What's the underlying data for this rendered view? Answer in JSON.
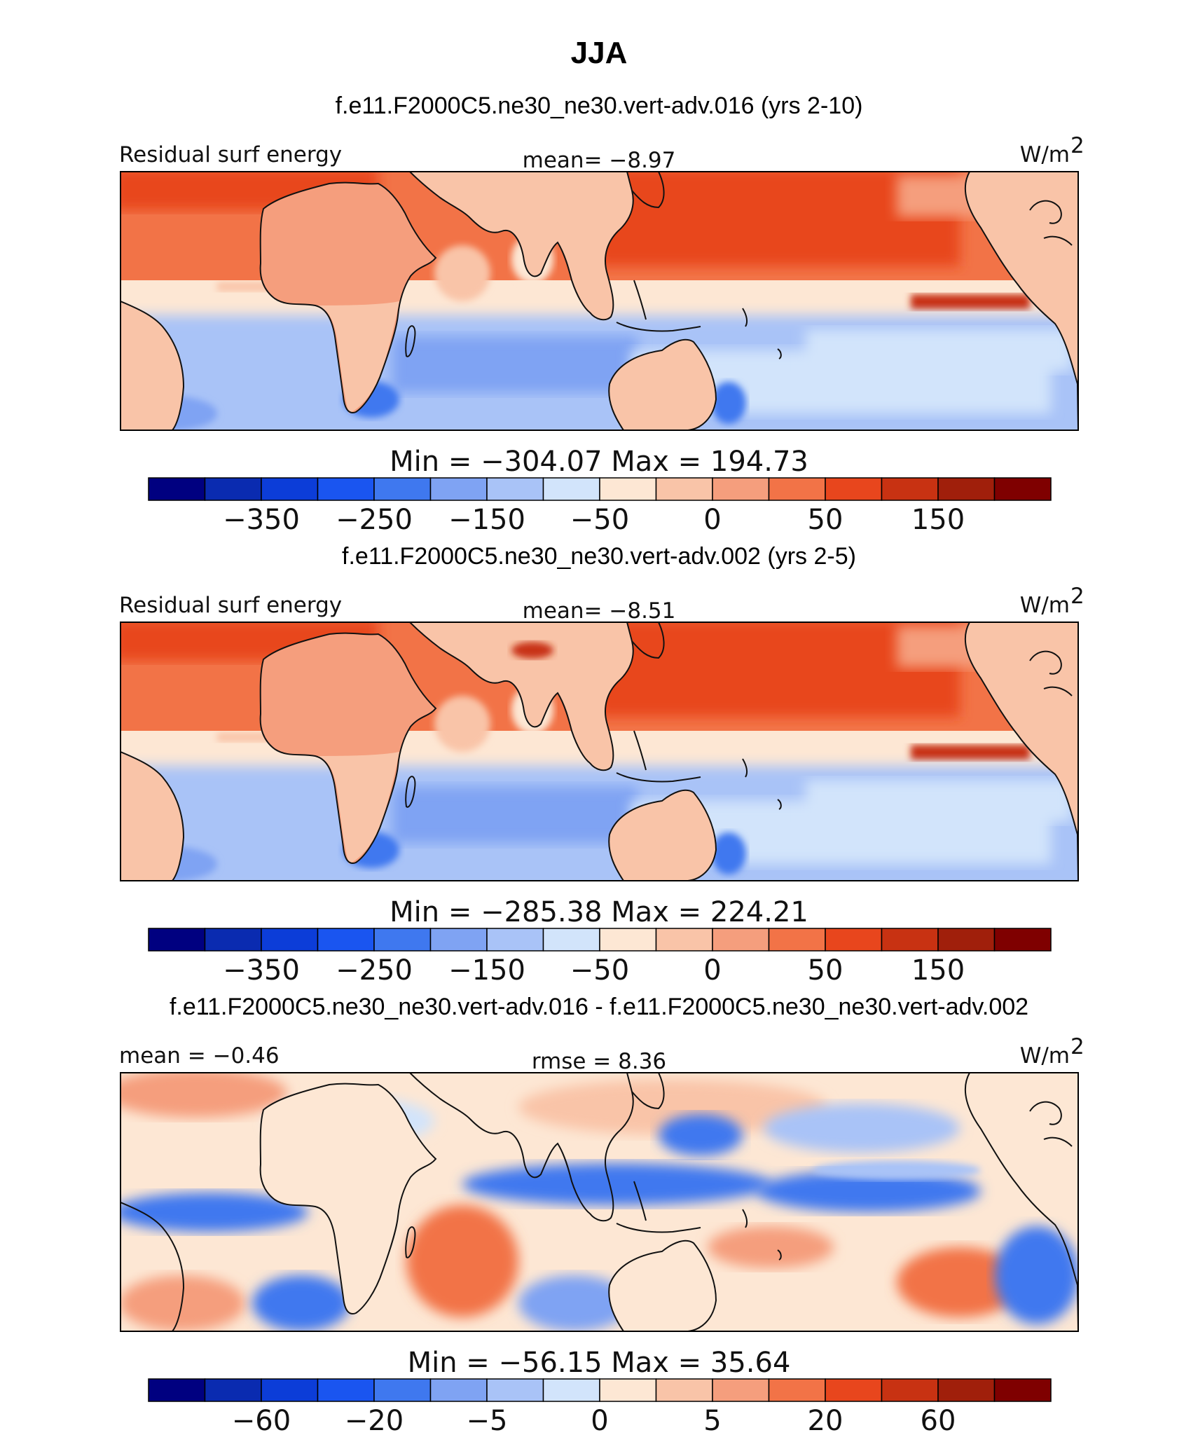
{
  "chart_data": {
    "type": "heatmap",
    "title": "JJA",
    "colors": [
      "#000080",
      "#0a2bb0",
      "#0c3dd8",
      "#1a55f0",
      "#3f78ef",
      "#7fa3f3",
      "#a9c3f7",
      "#d2e4fb",
      "#fde7d4",
      "#f9c4a8",
      "#f59e7d",
      "#f27347",
      "#e8461d",
      "#c83212",
      "#a01f0b",
      "#7f0000"
    ],
    "panels": [
      {
        "id": "top",
        "case_title": "f.e11.F2000C5.ne30_ne30.vert-adv.016 (yrs 2-10)",
        "left_label": "Residual surf energy",
        "center_label": "mean=   −8.97",
        "units_base": "W/m",
        "units_exp": "2",
        "min_label": "Min",
        "min_value": "−304.07",
        "max_label": "Max",
        "max_value": "194.73",
        "colorbar_ticks": [
          "−350",
          "−250",
          "−150",
          "−50",
          "0",
          "50",
          "150"
        ],
        "colorbar_tick_box_index": [
          2,
          4,
          6,
          8,
          10,
          12,
          14
        ]
      },
      {
        "id": "middle",
        "case_title": "f.e11.F2000C5.ne30_ne30.vert-adv.002 (yrs 2-5)",
        "left_label": "Residual surf energy",
        "center_label": "mean=   −8.51",
        "units_base": "W/m",
        "units_exp": "2",
        "min_label": "Min",
        "min_value": "−285.38",
        "max_label": "Max",
        "max_value": "224.21",
        "colorbar_ticks": [
          "−350",
          "−250",
          "−150",
          "−50",
          "0",
          "50",
          "150"
        ],
        "colorbar_tick_box_index": [
          2,
          4,
          6,
          8,
          10,
          12,
          14
        ]
      },
      {
        "id": "diff",
        "case_title": "f.e11.F2000C5.ne30_ne30.vert-adv.016 - f.e11.F2000C5.ne30_ne30.vert-adv.002",
        "left_label": "mean =   −0.46",
        "center_label": "rmse =     8.36",
        "units_base": "W/m",
        "units_exp": "2",
        "min_label": "Min",
        "min_value": "−56.15",
        "max_label": "Max",
        "max_value": "35.64",
        "colorbar_ticks": [
          "−60",
          "−20",
          "−5",
          "0",
          "5",
          "20",
          "60"
        ],
        "colorbar_tick_box_index": [
          2,
          4,
          6,
          8,
          10,
          12,
          14
        ]
      }
    ]
  }
}
